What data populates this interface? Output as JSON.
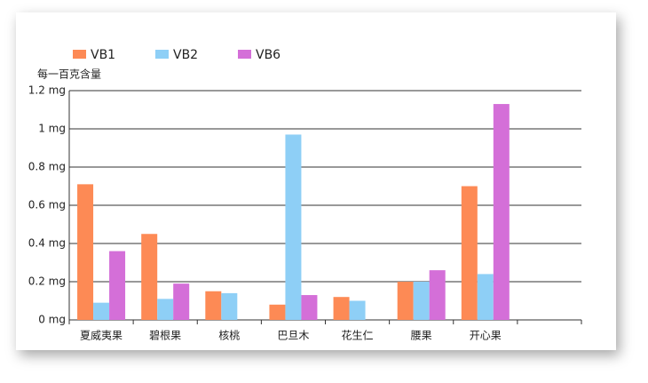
{
  "chart_data": {
    "type": "bar",
    "y_label": "每一百克含量",
    "categories": [
      "夏威夷果",
      "碧根果",
      "核桃",
      "巴旦木",
      "花生仁",
      "腰果",
      "开心果",
      null
    ],
    "series": [
      {
        "name": "VB1",
        "color": "#fd8a55",
        "values": [
          0.71,
          0.45,
          0.15,
          0.08,
          0.12,
          0.2,
          0.7,
          null
        ]
      },
      {
        "name": "VB2",
        "color": "#8ecff6",
        "values": [
          0.09,
          0.11,
          0.14,
          0.97,
          0.1,
          0.2,
          0.24,
          null
        ]
      },
      {
        "name": "VB6",
        "color": "#d46fd8",
        "values": [
          0.36,
          0.19,
          null,
          0.13,
          null,
          0.26,
          1.13,
          null
        ]
      }
    ],
    "ylim": [
      0,
      1.2
    ],
    "yticks": [
      {
        "value": 0,
        "label": "0 mg"
      },
      {
        "value": 0.2,
        "label": "0.2 mg"
      },
      {
        "value": 0.4,
        "label": "0.4 mg"
      },
      {
        "value": 0.6,
        "label": "0.6 mg"
      },
      {
        "value": 0.8,
        "label": "0.8 mg"
      },
      {
        "value": 1,
        "label": "1 mg"
      },
      {
        "value": 1.2,
        "label": "1.2 mg"
      }
    ],
    "grid": true
  }
}
